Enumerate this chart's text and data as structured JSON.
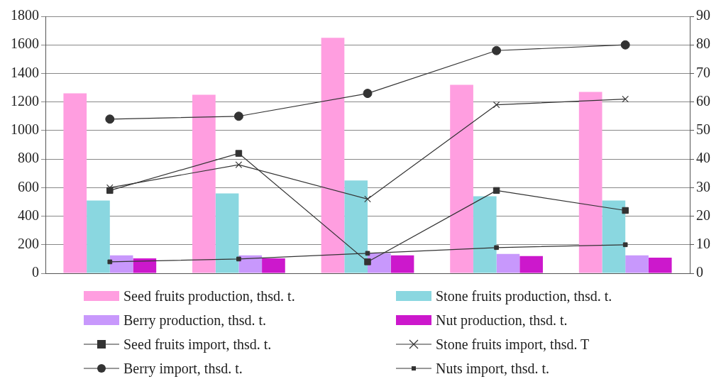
{
  "chart_data": {
    "type": "bar",
    "categories": [
      null,
      null,
      null,
      null,
      null
    ],
    "series": [
      {
        "name": "Seed fruits production, thsd. t.",
        "color": "#ff9ee0",
        "values": [
          1260,
          1250,
          1650,
          1320,
          1270
        ]
      },
      {
        "name": "Stone fruits production, thsd. t.",
        "color": "#8ad7e0",
        "values": [
          510,
          560,
          650,
          540,
          510
        ]
      },
      {
        "name": "Berry production, thsd. t.",
        "color": "#c898fc",
        "values": [
          125,
          125,
          140,
          135,
          125
        ]
      },
      {
        "name": "Nut production, thsd. t.",
        "color": "#cc18cc",
        "values": [
          105,
          105,
          125,
          120,
          110
        ]
      },
      {
        "name": "Seed fruits import, thsd. t.",
        "type": "line",
        "axis": "y2",
        "marker": "square",
        "color": "#333333",
        "values": [
          29,
          42,
          4,
          29,
          22
        ]
      },
      {
        "name": "Stone fruits import, thsd. T",
        "type": "line",
        "axis": "y2",
        "marker": "cross",
        "color": "#333333",
        "values": [
          30,
          38,
          26,
          59,
          61
        ]
      },
      {
        "name": "Berry import, thsd. t.",
        "type": "line",
        "axis": "y2",
        "marker": "circle",
        "color": "#333333",
        "values": [
          54,
          55,
          63,
          78,
          80
        ]
      },
      {
        "name": "Nuts import, thsd. t.",
        "type": "line",
        "axis": "y2",
        "marker": "square",
        "color": "#333333",
        "values": [
          4,
          5,
          7,
          9,
          10
        ]
      }
    ],
    "ylim": [
      0,
      1800
    ],
    "yticks": [
      0,
      200,
      400,
      600,
      800,
      1000,
      1200,
      1400,
      1600,
      1800
    ],
    "y2lim": [
      0,
      90
    ],
    "y2ticks": [
      0,
      10,
      20,
      30,
      40,
      50,
      60,
      70,
      80,
      90
    ],
    "grid": "y",
    "legend": "bottom"
  }
}
